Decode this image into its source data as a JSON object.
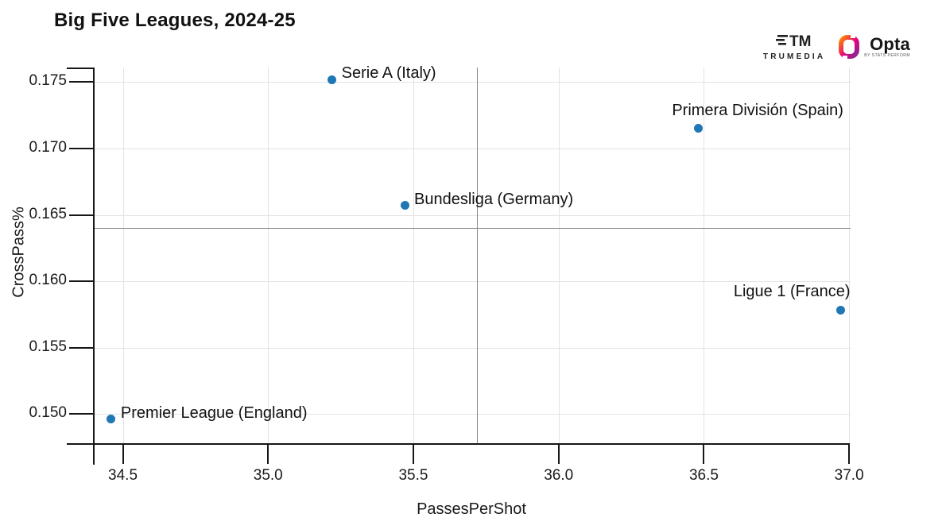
{
  "title": "Big Five Leagues, 2024-25",
  "branding": {
    "trumedia_label": "TRUMEDIA",
    "trumedia_monogram": "TM",
    "opta_label": "Opta",
    "opta_sublabel": "BY STATS PERFORM"
  },
  "chart_data": {
    "type": "scatter",
    "title": "Big Five Leagues, 2024-25",
    "xlabel": "PassesPerShot",
    "ylabel": "CrossPass%",
    "xlim": [
      34.4,
      37.005
    ],
    "ylim": [
      0.1478,
      0.1761
    ],
    "x_ticks": [
      "34.5",
      "35.0",
      "35.5",
      "36.0",
      "36.5",
      "37.0"
    ],
    "y_ticks": [
      "0.150",
      "0.155",
      "0.160",
      "0.165",
      "0.170",
      "0.175"
    ],
    "grid": true,
    "legend": "none",
    "mean_lines": {
      "x": 35.72,
      "y": 0.164
    },
    "point_color": "#1f77b4",
    "points": [
      {
        "label": "Premier League (England)",
        "x": 34.46,
        "y": 0.1496,
        "anchor": "right"
      },
      {
        "label": "Serie A (Italy)",
        "x": 35.22,
        "y": 0.1752,
        "anchor": "right"
      },
      {
        "label": "Bundesliga (Germany)",
        "x": 35.47,
        "y": 0.1657,
        "anchor": "right"
      },
      {
        "label": "Primera División (Spain)",
        "x": 36.48,
        "y": 0.1715,
        "anchor": "above-right"
      },
      {
        "label": "Ligue 1 (France)",
        "x": 36.97,
        "y": 0.1578,
        "anchor": "above-left"
      }
    ]
  }
}
